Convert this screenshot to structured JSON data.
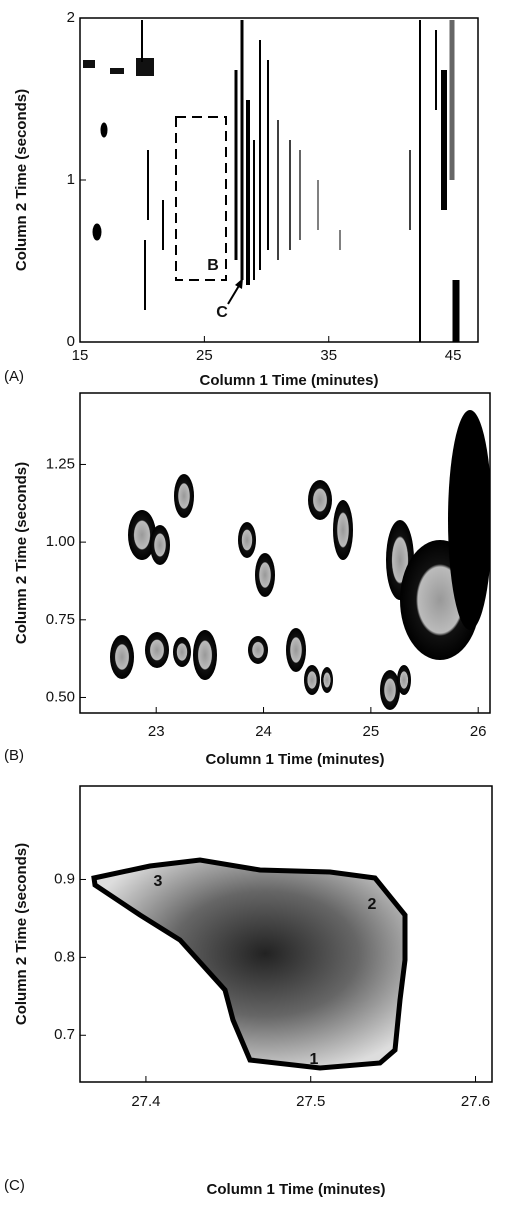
{
  "chart_data": [
    {
      "type": "contour",
      "panel_label": "(A)",
      "x_label": "Column 1 Time (minutes)",
      "y_label": "Column 2 Time (seconds)",
      "xlim": [
        15,
        47
      ],
      "ylim": [
        0,
        2
      ],
      "xticks": [
        15,
        25,
        35,
        45
      ],
      "yticks": [
        0,
        1,
        2
      ],
      "annotations": [
        "B",
        "C"
      ]
    },
    {
      "type": "contour",
      "panel_label": "(B)",
      "x_label": "Column 1 Time (minutes)",
      "y_label": "Column 2 Time (seconds)",
      "xlim": [
        22.29,
        26.11
      ],
      "ylim": [
        0.45,
        1.48
      ],
      "xticks": [
        23,
        24,
        25,
        26
      ],
      "yticks": [
        {
          "value": 0.5,
          "label": "0.50"
        },
        0.75,
        {
          "value": 1,
          "label": "1.00"
        },
        1.25
      ]
    },
    {
      "type": "contour",
      "panel_label": "(C)",
      "x_label": "Column 1 Time (minutes)",
      "y_label": "Column 2 Time (seconds)",
      "xlim": [
        27.36,
        27.61
      ],
      "ylim": [
        0.64,
        1.02
      ],
      "xticks": [
        27.4,
        27.5,
        27.6
      ],
      "yticks": [
        0.7,
        0.8,
        0.9
      ],
      "annotations": [
        "3",
        "2",
        "1"
      ]
    }
  ]
}
